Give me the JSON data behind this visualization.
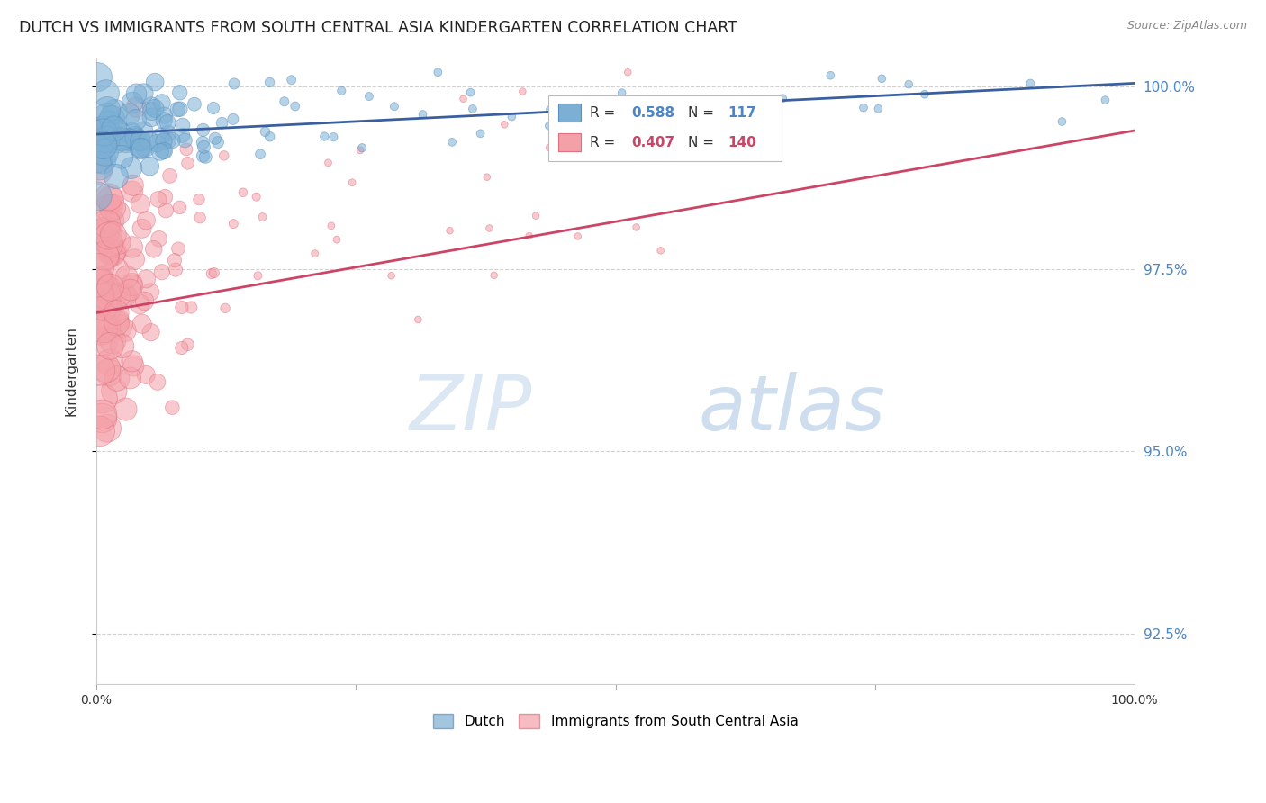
{
  "title": "DUTCH VS IMMIGRANTS FROM SOUTH CENTRAL ASIA KINDERGARTEN CORRELATION CHART",
  "source": "Source: ZipAtlas.com",
  "ylabel": "Kindergarten",
  "xlim": [
    0.0,
    1.0
  ],
  "ylim": [
    0.918,
    1.004
  ],
  "yticks": [
    0.925,
    0.95,
    0.975,
    1.0
  ],
  "ytick_labels": [
    "92.5%",
    "95.0%",
    "97.5%",
    "100.0%"
  ],
  "xticks": [
    0.0,
    0.25,
    0.5,
    0.75,
    1.0
  ],
  "xtick_labels": [
    "0.0%",
    "",
    "",
    "",
    "100.0%"
  ],
  "dutch_color": "#7bafd4",
  "dutch_edge_color": "#5b8fbf",
  "immigrant_color": "#f4a0a8",
  "immigrant_edge_color": "#e07080",
  "dutch_line_color": "#3a5fa0",
  "immigrant_line_color": "#cc4466",
  "dutch_R": 0.588,
  "dutch_N": 117,
  "immigrant_R": 0.407,
  "immigrant_N": 140,
  "legend_dutch": "Dutch",
  "legend_immigrant": "Immigrants from South Central Asia",
  "watermark_zip": "ZIP",
  "watermark_atlas": "atlas",
  "background_color": "#ffffff",
  "grid_color": "#cccccc",
  "right_tick_color": "#4a86c8",
  "title_color": "#222222",
  "source_color": "#888888"
}
